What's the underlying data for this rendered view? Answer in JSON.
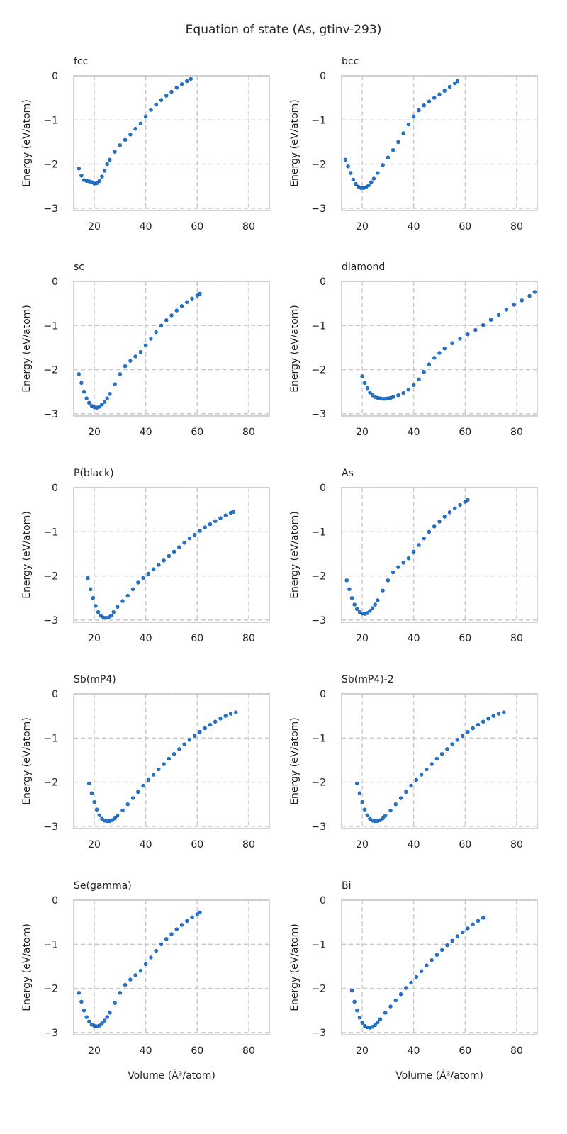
{
  "figure": {
    "title": "Equation of state (As, gtinv-293)"
  },
  "style": {
    "point_color": "#1f77d4",
    "point_edge": "#1a4f9a"
  },
  "chart_data": [
    {
      "type": "scatter",
      "title": "fcc",
      "xlabel": "",
      "ylabel": "Energy (eV/atom)",
      "xlim": [
        12,
        88
      ],
      "ylim": [
        -3.05,
        0
      ],
      "xticks": [
        20,
        40,
        60,
        80
      ],
      "yticks": [
        0,
        -1,
        -2,
        -3
      ],
      "xticklabels": [
        "20",
        "40",
        "60",
        "80"
      ],
      "yticklabels": [
        "0",
        "−1",
        "−2",
        "−3"
      ],
      "grid": true,
      "x": [
        14,
        15,
        16,
        17,
        18,
        19,
        20,
        21,
        22,
        23,
        24,
        25,
        26,
        28,
        30,
        32,
        34,
        36,
        38,
        40,
        42,
        44,
        46,
        48,
        50,
        52,
        54,
        56,
        57.5
      ],
      "y": [
        -2.1,
        -2.26,
        -2.36,
        -2.38,
        -2.39,
        -2.41,
        -2.44,
        -2.43,
        -2.38,
        -2.28,
        -2.15,
        -2.0,
        -1.9,
        -1.72,
        -1.57,
        -1.45,
        -1.33,
        -1.2,
        -1.08,
        -0.92,
        -0.77,
        -0.65,
        -0.55,
        -0.45,
        -0.36,
        -0.27,
        -0.19,
        -0.12,
        -0.07
      ]
    },
    {
      "type": "scatter",
      "title": "bcc",
      "xlabel": "",
      "ylabel": "Energy (eV/atom)",
      "xlim": [
        12,
        88
      ],
      "ylim": [
        -3.05,
        0
      ],
      "xticks": [
        20,
        40,
        60,
        80
      ],
      "yticks": [
        0,
        -1,
        -2,
        -3
      ],
      "xticklabels": [
        "20",
        "40",
        "60",
        "80"
      ],
      "yticklabels": [
        "0",
        "−1",
        "−2",
        "−3"
      ],
      "grid": true,
      "x": [
        13.5,
        14.5,
        15.5,
        16.5,
        17.5,
        18.5,
        19.5,
        20.5,
        21.5,
        22.5,
        23.5,
        24.5,
        26,
        28,
        30,
        32,
        34,
        36,
        38,
        40,
        42,
        44,
        46,
        48,
        50,
        52,
        54,
        56,
        57
      ],
      "y": [
        -1.9,
        -2.05,
        -2.2,
        -2.35,
        -2.45,
        -2.51,
        -2.54,
        -2.54,
        -2.52,
        -2.48,
        -2.41,
        -2.33,
        -2.2,
        -2.02,
        -1.85,
        -1.68,
        -1.5,
        -1.3,
        -1.1,
        -0.92,
        -0.78,
        -0.67,
        -0.58,
        -0.5,
        -0.42,
        -0.34,
        -0.25,
        -0.17,
        -0.12
      ]
    },
    {
      "type": "scatter",
      "title": "sc",
      "xlabel": "",
      "ylabel": "Energy (eV/atom)",
      "xlim": [
        12,
        88
      ],
      "ylim": [
        -3.05,
        0
      ],
      "xticks": [
        20,
        40,
        60,
        80
      ],
      "yticks": [
        0,
        -1,
        -2,
        -3
      ],
      "xticklabels": [
        "20",
        "40",
        "60",
        "80"
      ],
      "yticklabels": [
        "0",
        "−1",
        "−2",
        "−3"
      ],
      "grid": true,
      "x": [
        14,
        15,
        16,
        17,
        18,
        19,
        20,
        21,
        22,
        23,
        24,
        25,
        26,
        28,
        30,
        32,
        34,
        36,
        38,
        40,
        42,
        44,
        46,
        48,
        50,
        52,
        54,
        56,
        58,
        60,
        61
      ],
      "y": [
        -2.1,
        -2.3,
        -2.5,
        -2.65,
        -2.75,
        -2.82,
        -2.85,
        -2.86,
        -2.84,
        -2.79,
        -2.73,
        -2.65,
        -2.55,
        -2.33,
        -2.1,
        -1.92,
        -1.8,
        -1.7,
        -1.6,
        -1.45,
        -1.3,
        -1.15,
        -1.0,
        -0.88,
        -0.77,
        -0.66,
        -0.56,
        -0.47,
        -0.39,
        -0.32,
        -0.28
      ]
    },
    {
      "type": "scatter",
      "title": "diamond",
      "xlabel": "",
      "ylabel": "Energy (eV/atom)",
      "xlim": [
        12,
        88
      ],
      "ylim": [
        -3.05,
        0
      ],
      "xticks": [
        20,
        40,
        60,
        80
      ],
      "yticks": [
        0,
        -1,
        -2,
        -3
      ],
      "xticklabels": [
        "20",
        "40",
        "60",
        "80"
      ],
      "yticklabels": [
        "0",
        "−1",
        "−2",
        "−3"
      ],
      "grid": true,
      "x": [
        20,
        21,
        22,
        23,
        24,
        25,
        26,
        27,
        28,
        29,
        30,
        31,
        32,
        34,
        36,
        38,
        40,
        42,
        44,
        46,
        48,
        50,
        52,
        55,
        58,
        61,
        64,
        67,
        70,
        73,
        76,
        79,
        82,
        85,
        87
      ],
      "y": [
        -2.15,
        -2.3,
        -2.42,
        -2.52,
        -2.58,
        -2.62,
        -2.64,
        -2.65,
        -2.66,
        -2.66,
        -2.65,
        -2.64,
        -2.62,
        -2.58,
        -2.53,
        -2.45,
        -2.35,
        -2.22,
        -2.05,
        -1.88,
        -1.73,
        -1.62,
        -1.52,
        -1.4,
        -1.3,
        -1.2,
        -1.1,
        -0.99,
        -0.87,
        -0.76,
        -0.64,
        -0.53,
        -0.43,
        -0.33,
        -0.24
      ]
    },
    {
      "type": "scatter",
      "title": "P(black)",
      "xlabel": "",
      "ylabel": "Energy (eV/atom)",
      "xlim": [
        12,
        88
      ],
      "ylim": [
        -3.05,
        0
      ],
      "xticks": [
        20,
        40,
        60,
        80
      ],
      "yticks": [
        0,
        -1,
        -2,
        -3
      ],
      "xticklabels": [
        "20",
        "40",
        "60",
        "80"
      ],
      "yticklabels": [
        "0",
        "−1",
        "−2",
        "−3"
      ],
      "grid": true,
      "x": [
        17.5,
        18.5,
        19.5,
        20.5,
        21.5,
        22.5,
        23.5,
        24.5,
        25.5,
        26.5,
        27.5,
        29,
        31,
        33,
        35,
        37,
        39,
        41,
        43,
        45,
        47,
        49,
        51,
        53,
        55,
        57,
        59,
        61,
        63,
        65,
        67,
        69,
        71,
        73,
        74
      ],
      "y": [
        -2.05,
        -2.3,
        -2.5,
        -2.68,
        -2.82,
        -2.9,
        -2.94,
        -2.95,
        -2.94,
        -2.9,
        -2.82,
        -2.7,
        -2.57,
        -2.45,
        -2.3,
        -2.15,
        -2.05,
        -1.95,
        -1.85,
        -1.75,
        -1.65,
        -1.55,
        -1.45,
        -1.35,
        -1.25,
        -1.15,
        -1.07,
        -0.98,
        -0.9,
        -0.83,
        -0.76,
        -0.69,
        -0.63,
        -0.57,
        -0.55
      ]
    },
    {
      "type": "scatter",
      "title": "As",
      "xlabel": "",
      "ylabel": "Energy (eV/atom)",
      "xlim": [
        12,
        88
      ],
      "ylim": [
        -3.05,
        0
      ],
      "xticks": [
        20,
        40,
        60,
        80
      ],
      "yticks": [
        0,
        -1,
        -2,
        -3
      ],
      "xticklabels": [
        "20",
        "40",
        "60",
        "80"
      ],
      "yticklabels": [
        "0",
        "−1",
        "−2",
        "−3"
      ],
      "grid": true,
      "x": [
        14,
        15,
        16,
        17,
        18,
        19,
        20,
        21,
        22,
        23,
        24,
        25,
        26,
        28,
        30,
        32,
        34,
        36,
        38,
        40,
        42,
        44,
        46,
        48,
        50,
        52,
        54,
        56,
        58,
        60,
        61
      ],
      "y": [
        -2.1,
        -2.3,
        -2.5,
        -2.65,
        -2.75,
        -2.82,
        -2.85,
        -2.86,
        -2.84,
        -2.79,
        -2.73,
        -2.65,
        -2.55,
        -2.33,
        -2.1,
        -1.92,
        -1.8,
        -1.7,
        -1.6,
        -1.45,
        -1.3,
        -1.15,
        -1.0,
        -0.88,
        -0.77,
        -0.66,
        -0.56,
        -0.47,
        -0.39,
        -0.32,
        -0.28
      ]
    },
    {
      "type": "scatter",
      "title": "Sb(mP4)",
      "xlabel": "",
      "ylabel": "Energy (eV/atom)",
      "xlim": [
        12,
        88
      ],
      "ylim": [
        -3.05,
        0
      ],
      "xticks": [
        20,
        40,
        60,
        80
      ],
      "yticks": [
        0,
        -1,
        -2,
        -3
      ],
      "xticklabels": [
        "20",
        "40",
        "60",
        "80"
      ],
      "yticklabels": [
        "0",
        "−1",
        "−2",
        "−3"
      ],
      "grid": true,
      "x": [
        18,
        19,
        20,
        21,
        22,
        23,
        24,
        25,
        26,
        27,
        28,
        29,
        31,
        33,
        35,
        37,
        39,
        41,
        43,
        45,
        47,
        49,
        51,
        53,
        55,
        57,
        59,
        61,
        63,
        65,
        67,
        69,
        71,
        73,
        75
      ],
      "y": [
        -2.03,
        -2.25,
        -2.45,
        -2.62,
        -2.75,
        -2.83,
        -2.87,
        -2.88,
        -2.88,
        -2.86,
        -2.82,
        -2.76,
        -2.64,
        -2.5,
        -2.36,
        -2.22,
        -2.08,
        -1.95,
        -1.83,
        -1.71,
        -1.59,
        -1.47,
        -1.36,
        -1.25,
        -1.14,
        -1.04,
        -0.95,
        -0.86,
        -0.78,
        -0.7,
        -0.63,
        -0.56,
        -0.5,
        -0.45,
        -0.42
      ]
    },
    {
      "type": "scatter",
      "title": "Sb(mP4)-2",
      "xlabel": "",
      "ylabel": "Energy (eV/atom)",
      "xlim": [
        12,
        88
      ],
      "ylim": [
        -3.05,
        0
      ],
      "xticks": [
        20,
        40,
        60,
        80
      ],
      "yticks": [
        0,
        -1,
        -2,
        -3
      ],
      "xticklabels": [
        "20",
        "40",
        "60",
        "80"
      ],
      "yticklabels": [
        "0",
        "−1",
        "−2",
        "−3"
      ],
      "grid": true,
      "x": [
        18,
        19,
        20,
        21,
        22,
        23,
        24,
        25,
        26,
        27,
        28,
        29,
        31,
        33,
        35,
        37,
        39,
        41,
        43,
        45,
        47,
        49,
        51,
        53,
        55,
        57,
        59,
        61,
        63,
        65,
        67,
        69,
        71,
        73,
        75
      ],
      "y": [
        -2.03,
        -2.25,
        -2.45,
        -2.62,
        -2.75,
        -2.83,
        -2.87,
        -2.88,
        -2.88,
        -2.86,
        -2.82,
        -2.76,
        -2.64,
        -2.5,
        -2.36,
        -2.22,
        -2.08,
        -1.95,
        -1.83,
        -1.71,
        -1.59,
        -1.47,
        -1.36,
        -1.25,
        -1.14,
        -1.04,
        -0.95,
        -0.86,
        -0.78,
        -0.7,
        -0.63,
        -0.56,
        -0.5,
        -0.45,
        -0.42
      ]
    },
    {
      "type": "scatter",
      "title": "Se(gamma)",
      "xlabel": "Volume (Å³/atom)",
      "ylabel": "Energy (eV/atom)",
      "xlim": [
        12,
        88
      ],
      "ylim": [
        -3.05,
        0
      ],
      "xticks": [
        20,
        40,
        60,
        80
      ],
      "yticks": [
        0,
        -1,
        -2,
        -3
      ],
      "xticklabels": [
        "20",
        "40",
        "60",
        "80"
      ],
      "yticklabels": [
        "0",
        "−1",
        "−2",
        "−3"
      ],
      "grid": true,
      "x": [
        14,
        15,
        16,
        17,
        18,
        19,
        20,
        21,
        22,
        23,
        24,
        25,
        26,
        28,
        30,
        32,
        34,
        36,
        38,
        40,
        42,
        44,
        46,
        48,
        50,
        52,
        54,
        56,
        58,
        60,
        61
      ],
      "y": [
        -2.1,
        -2.3,
        -2.5,
        -2.65,
        -2.75,
        -2.82,
        -2.85,
        -2.86,
        -2.84,
        -2.79,
        -2.73,
        -2.65,
        -2.55,
        -2.33,
        -2.1,
        -1.92,
        -1.8,
        -1.7,
        -1.6,
        -1.45,
        -1.3,
        -1.15,
        -1.0,
        -0.88,
        -0.77,
        -0.66,
        -0.56,
        -0.47,
        -0.39,
        -0.32,
        -0.28
      ]
    },
    {
      "type": "scatter",
      "title": "Bi",
      "xlabel": "Volume (Å³/atom)",
      "ylabel": "Energy (eV/atom)",
      "xlim": [
        12,
        88
      ],
      "ylim": [
        -3.05,
        0
      ],
      "xticks": [
        20,
        40,
        60,
        80
      ],
      "yticks": [
        0,
        -1,
        -2,
        -3
      ],
      "xticklabels": [
        "20",
        "40",
        "60",
        "80"
      ],
      "yticklabels": [
        "0",
        "−1",
        "−2",
        "−3"
      ],
      "grid": true,
      "x": [
        16,
        17,
        18,
        19,
        20,
        21,
        22,
        23,
        24,
        25,
        26,
        27,
        29,
        31,
        33,
        35,
        37,
        39,
        41,
        43,
        45,
        47,
        49,
        51,
        53,
        55,
        57,
        59,
        61,
        63,
        65,
        67
      ],
      "y": [
        -2.05,
        -2.3,
        -2.5,
        -2.66,
        -2.78,
        -2.85,
        -2.88,
        -2.89,
        -2.87,
        -2.83,
        -2.77,
        -2.7,
        -2.55,
        -2.41,
        -2.27,
        -2.13,
        -1.99,
        -1.87,
        -1.74,
        -1.61,
        -1.48,
        -1.36,
        -1.24,
        -1.13,
        -1.02,
        -0.92,
        -0.82,
        -0.73,
        -0.64,
        -0.55,
        -0.47,
        -0.4
      ]
    }
  ]
}
